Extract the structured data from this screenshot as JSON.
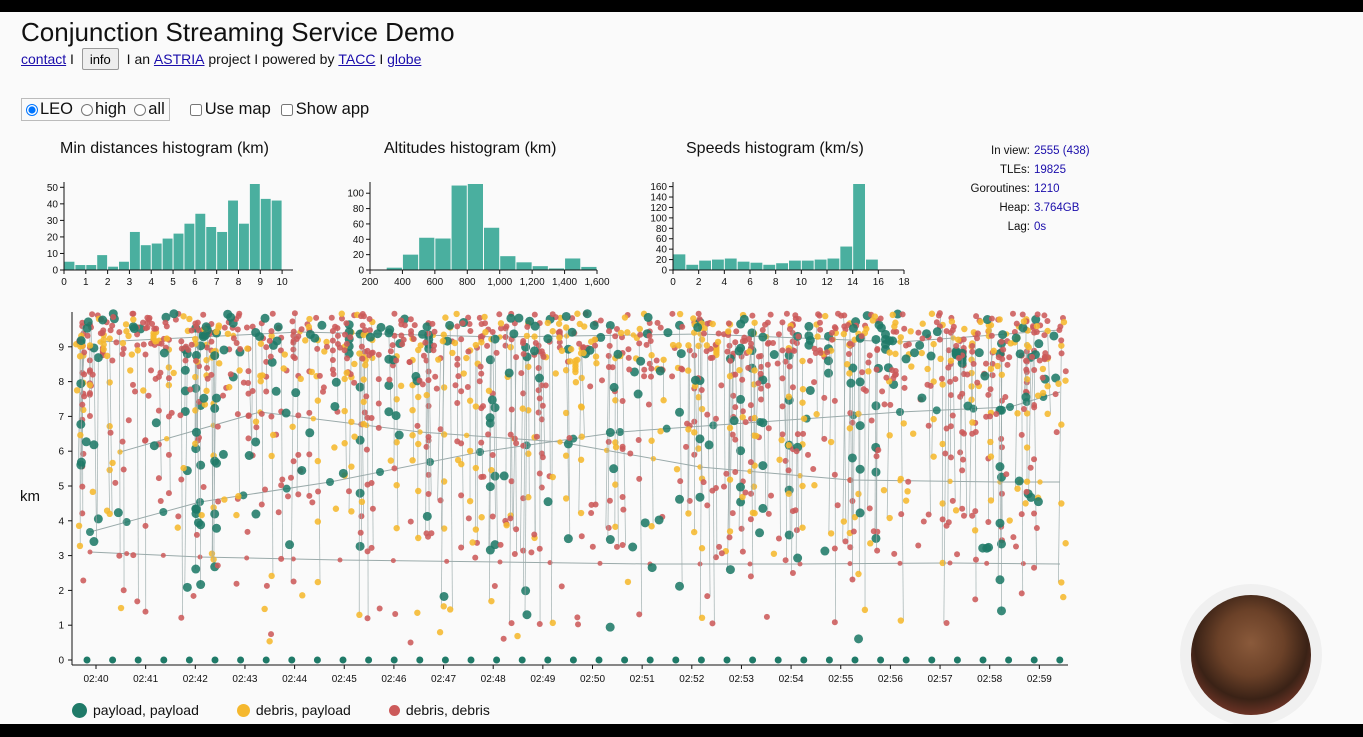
{
  "title": "Conjunction Streaming Service Demo",
  "links": {
    "contact": "contact",
    "sep": " I ",
    "info": "info",
    "an": " I an ",
    "astria": "ASTRIA",
    "project": " project I powered by ",
    "tacc": "TACC",
    "sep2": " I ",
    "globe": "globe"
  },
  "controls": {
    "orbit_options": [
      {
        "label": "LEO",
        "checked": true
      },
      {
        "label": "high",
        "checked": false
      },
      {
        "label": "all",
        "checked": false
      }
    ],
    "use_map": "Use map",
    "show_app": "Show app"
  },
  "stats": [
    {
      "label": "In view:",
      "value": "2555 (438)"
    },
    {
      "label": "TLEs:",
      "value": "19825"
    },
    {
      "label": "Goroutines:",
      "value": "1210"
    },
    {
      "label": "Heap:",
      "value": "3.764GB"
    },
    {
      "label": "Lag:",
      "value": "0s"
    }
  ],
  "y_axis_label": "km",
  "legend": [
    {
      "label": "payload, payload",
      "color": "#1f7a68"
    },
    {
      "label": "debris, payload",
      "color": "#f5b82e"
    },
    {
      "label": "debris, debris",
      "color": "#cc5a5a"
    }
  ],
  "colors": {
    "bar": "#4aaf9f",
    "payload": "#1f7a68",
    "debris_payload": "#f5b82e",
    "debris_debris": "#cc5a5a",
    "line": "#9aaaaa"
  },
  "chart_data": [
    {
      "type": "bar",
      "title": "Min distances histogram (km)",
      "x": [
        0,
        0.5,
        1,
        1.5,
        2,
        2.5,
        3,
        3.5,
        4,
        4.5,
        5,
        5.5,
        6,
        6.5,
        7,
        7.5,
        8,
        8.5,
        9,
        9.5
      ],
      "bin_width": 0.5,
      "values": [
        5,
        3,
        3,
        9,
        2,
        5,
        23,
        15,
        16,
        19,
        22,
        28,
        34,
        26,
        23,
        42,
        28,
        52,
        43,
        42
      ],
      "xlim": [
        0,
        10.5
      ],
      "ylim": [
        0,
        52
      ],
      "xticks": [
        0,
        1,
        2,
        3,
        4,
        5,
        6,
        7,
        8,
        9,
        10
      ],
      "yticks": [
        0,
        10,
        20,
        30,
        40,
        50
      ]
    },
    {
      "type": "bar",
      "title": "Altitudes histogram (km)",
      "x": [
        300,
        400,
        500,
        600,
        700,
        800,
        900,
        1000,
        1100,
        1200,
        1300,
        1400,
        1500
      ],
      "bin_width": 100,
      "values": [
        3,
        20,
        42,
        41,
        110,
        112,
        55,
        18,
        10,
        5,
        2,
        15,
        4
      ],
      "xlim": [
        200,
        1600
      ],
      "ylim": [
        0,
        112
      ],
      "xticks": [
        200,
        400,
        600,
        800,
        1000,
        1200,
        1400,
        1600
      ],
      "xtick_labels": [
        "200",
        "400",
        "600",
        "800",
        "1,000",
        "1,200",
        "1,400",
        "1,600"
      ],
      "yticks": [
        0,
        20,
        40,
        60,
        80,
        100
      ]
    },
    {
      "type": "bar",
      "title": "Speeds histogram (km/s)",
      "x": [
        0,
        1,
        2,
        3,
        4,
        5,
        6,
        7,
        8,
        9,
        10,
        11,
        12,
        13,
        14,
        15
      ],
      "bin_width": 1,
      "values": [
        30,
        10,
        18,
        20,
        22,
        16,
        14,
        10,
        13,
        18,
        18,
        20,
        22,
        45,
        165,
        20
      ],
      "xlim": [
        0,
        18
      ],
      "ylim": [
        0,
        165
      ],
      "xticks": [
        0,
        2,
        4,
        6,
        8,
        10,
        12,
        14,
        16,
        18
      ],
      "yticks": [
        0,
        20,
        40,
        60,
        80,
        100,
        120,
        140,
        160
      ]
    },
    {
      "type": "scatter",
      "title": "",
      "ylabel": "km",
      "ylim": [
        0,
        10
      ],
      "yticks": [
        0,
        1,
        2,
        3,
        4,
        5,
        6,
        7,
        8,
        9
      ],
      "xticks": [
        "02:40",
        "02:41",
        "02:42",
        "02:43",
        "02:44",
        "02:45",
        "02:46",
        "02:47",
        "02:48",
        "02:49",
        "02:50",
        "02:51",
        "02:52",
        "02:53",
        "02:54",
        "02:55",
        "02:56",
        "02:57",
        "02:58",
        "02:59"
      ],
      "baseline_points_km": 0,
      "note_series": [
        "payload, payload",
        "debris, payload",
        "debris, debris"
      ]
    }
  ]
}
